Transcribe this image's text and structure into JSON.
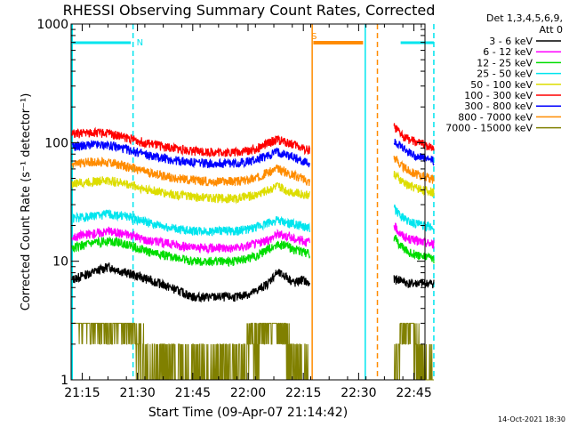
{
  "chart_data": {
    "type": "line",
    "title": "RHESSI Observing Summary Count Rates, Corrected",
    "xlabel": "Start Time (09-Apr-07 21:14:42)",
    "ylabel": "Corrected Count Rate (s⁻¹ detector⁻¹)",
    "y_scale": "log",
    "ylim": [
      1,
      1000
    ],
    "xlim_minutes": [
      21.2,
      22.8
    ],
    "x_ticks": [
      {
        "t": 21.25,
        "label": "21:15"
      },
      {
        "t": 21.5,
        "label": "21:30"
      },
      {
        "t": 21.75,
        "label": "21:45"
      },
      {
        "t": 22.0,
        "label": "22:00"
      },
      {
        "t": 22.25,
        "label": "22:15"
      },
      {
        "t": 22.5,
        "label": "22:30"
      },
      {
        "t": 22.75,
        "label": "22:45"
      }
    ],
    "y_ticks": [
      {
        "v": 1,
        "label": "1"
      },
      {
        "v": 10,
        "label": "10"
      },
      {
        "v": 100,
        "label": "100"
      },
      {
        "v": 1000,
        "label": "1000"
      }
    ],
    "legend_header": [
      "Det 1,3,4,5,6,9,",
      "Att 0"
    ],
    "legend_position": "right",
    "footer_date": "14-Oct-2021 18:30",
    "flags": [
      {
        "label": "N",
        "color": "#00e5ee",
        "from": 21.205,
        "to": 21.47,
        "label_at": 21.48
      },
      {
        "label": "",
        "color": "#00e5ee",
        "from": 22.69,
        "to": 22.84,
        "label_at": null
      },
      {
        "label": "S",
        "color": "#ff8c00",
        "from": 22.295,
        "to": 22.52,
        "label_at": 22.27
      }
    ],
    "markers": [
      {
        "t": 21.205,
        "color": "#00e5ee",
        "dash": false
      },
      {
        "t": 21.48,
        "color": "#00e5ee",
        "dash": true
      },
      {
        "t": 22.53,
        "color": "#00e5ee",
        "dash": false
      },
      {
        "t": 22.84,
        "color": "#00e5ee",
        "dash": true
      },
      {
        "t": 22.29,
        "color": "#ff8c00",
        "dash": false
      },
      {
        "t": 22.585,
        "color": "#ff8c00",
        "dash": true
      }
    ],
    "data_gap": [
      22.28,
      22.66
    ],
    "time_points": [
      21.205,
      21.29,
      21.37,
      21.45,
      21.55,
      21.65,
      21.75,
      21.85,
      21.95,
      22.03,
      22.09,
      22.13,
      22.17,
      22.21,
      22.245,
      22.275,
      22.66,
      22.69,
      22.72,
      22.755,
      22.795,
      22.84
    ],
    "series": [
      {
        "name": "3 - 6 keV",
        "color": "#000000",
        "values": [
          7,
          8,
          9,
          8,
          7,
          6,
          5,
          5,
          5,
          5.5,
          6.5,
          8,
          7.5,
          6.5,
          7,
          6.5,
          7,
          7,
          6.5,
          6.5,
          6.5,
          6.5
        ]
      },
      {
        "name": "6 - 12 keV",
        "color": "#ff00ff",
        "values": [
          16,
          17,
          18,
          17,
          15,
          14,
          13,
          13,
          13,
          14,
          15,
          17,
          16.5,
          15.5,
          15,
          14.5,
          20,
          17,
          15.5,
          15,
          14.5,
          14
        ]
      },
      {
        "name": "12 - 25 keV",
        "color": "#00dd00",
        "values": [
          13,
          14,
          15,
          14,
          12,
          11,
          10,
          10,
          10,
          11,
          12.5,
          14,
          13.5,
          12.5,
          12,
          11.5,
          16,
          13.5,
          12,
          11.5,
          11,
          10.5
        ]
      },
      {
        "name": "25 - 50 keV",
        "color": "#00e5ee",
        "values": [
          23,
          24,
          25,
          24,
          21,
          19,
          18,
          18,
          18,
          19,
          21,
          22,
          21,
          20.5,
          20,
          19,
          28,
          24,
          22,
          21,
          20,
          19
        ]
      },
      {
        "name": "50 - 100 keV",
        "color": "#dddd00",
        "values": [
          45,
          47,
          48,
          45,
          40,
          37,
          35,
          34,
          34,
          36,
          40,
          43,
          40,
          38,
          37,
          36,
          55,
          48,
          44,
          42,
          40,
          38
        ]
      },
      {
        "name": "100 - 300 keV",
        "color": "#ff0000",
        "values": [
          118,
          122,
          120,
          110,
          98,
          90,
          85,
          83,
          83,
          88,
          98,
          106,
          101,
          96,
          90,
          87,
          135,
          118,
          108,
          101,
          96,
          91
        ]
      },
      {
        "name": "300 - 800 keV",
        "color": "#0000ff",
        "values": [
          92,
          96,
          95,
          88,
          78,
          72,
          68,
          67,
          67,
          71,
          78,
          84,
          80,
          75,
          70,
          66,
          105,
          92,
          84,
          78,
          74,
          70
        ]
      },
      {
        "name": "800 - 7000 keV",
        "color": "#ff8c00",
        "values": [
          66,
          69,
          68,
          63,
          56,
          51,
          48,
          47,
          47,
          50,
          56,
          60,
          57,
          53,
          50,
          47,
          75,
          65,
          59,
          55,
          52,
          49
        ]
      },
      {
        "name": "7000 - 15000 keV",
        "color": "#808000",
        "values": [
          3,
          3,
          3,
          3,
          1,
          1,
          1,
          1,
          1,
          2,
          3,
          3,
          2,
          1,
          1,
          1,
          1,
          2,
          3,
          2,
          1,
          1
        ]
      }
    ]
  }
}
